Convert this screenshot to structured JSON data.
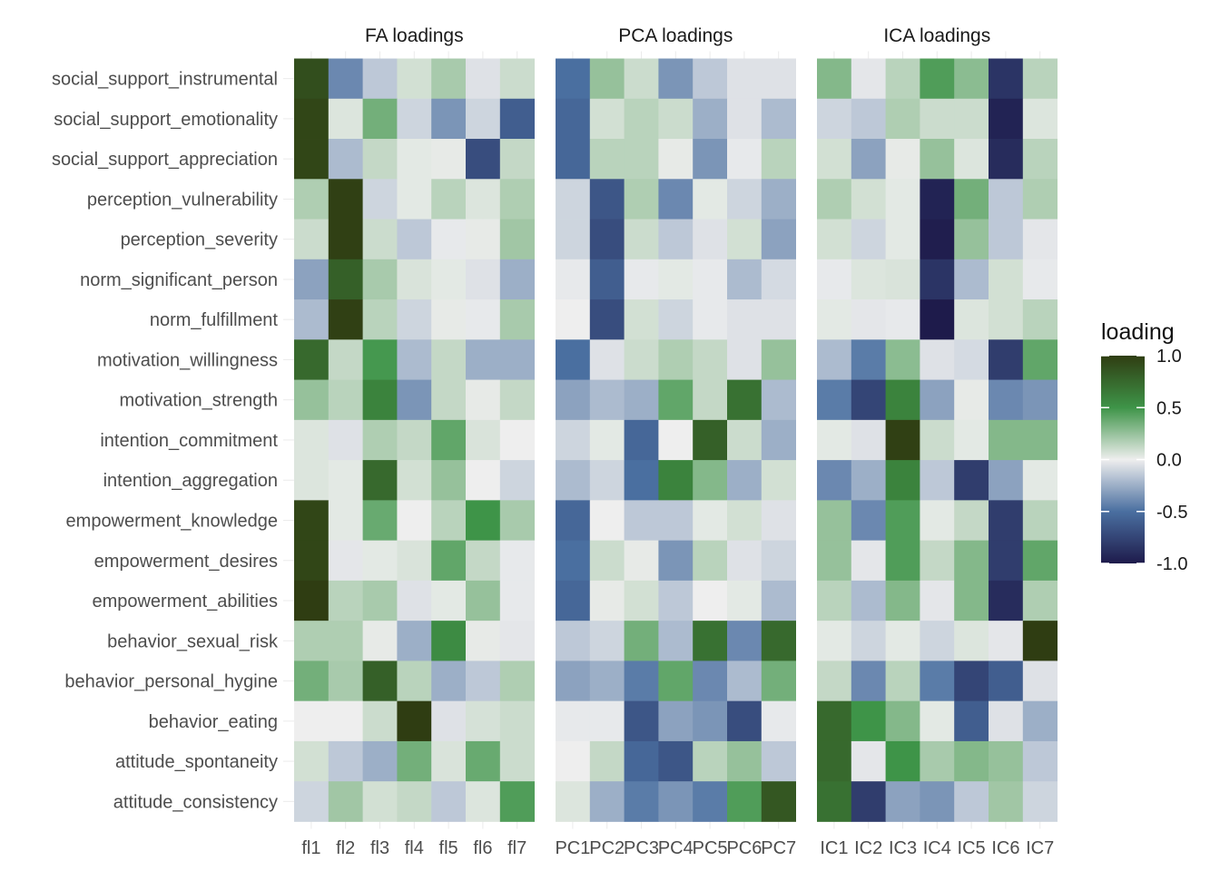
{
  "chart_data": {
    "type": "heatmap",
    "facets": [
      {
        "title": "FA loadings",
        "columns": [
          "fl1",
          "fl2",
          "fl3",
          "fl4",
          "fl5",
          "fl6",
          "fl7"
        ],
        "values": [
          [
            0.9,
            -0.4,
            -0.15,
            0.08,
            0.2,
            -0.05,
            0.1
          ],
          [
            0.95,
            0.05,
            0.35,
            -0.1,
            -0.35,
            -0.1,
            -0.6
          ],
          [
            0.95,
            -0.2,
            0.12,
            0.03,
            0.02,
            -0.7,
            0.12
          ],
          [
            0.18,
            0.98,
            -0.1,
            0.03,
            0.15,
            0.05,
            0.18
          ],
          [
            0.1,
            0.98,
            0.1,
            -0.15,
            -0.02,
            0.02,
            0.22
          ],
          [
            -0.3,
            0.8,
            0.2,
            0.06,
            0.03,
            -0.05,
            -0.25
          ],
          [
            -0.2,
            0.98,
            0.15,
            -0.1,
            0.02,
            -0.02,
            0.2
          ],
          [
            0.75,
            0.12,
            0.48,
            -0.2,
            0.12,
            -0.25,
            -0.25
          ],
          [
            0.25,
            0.15,
            0.6,
            -0.35,
            0.12,
            0.02,
            0.12
          ],
          [
            0.05,
            -0.05,
            0.18,
            0.12,
            0.4,
            0.06,
            0.0
          ],
          [
            0.05,
            0.03,
            0.75,
            0.08,
            0.25,
            0.0,
            -0.1
          ],
          [
            0.95,
            0.03,
            0.38,
            0.0,
            0.15,
            0.5,
            0.2
          ],
          [
            0.95,
            -0.03,
            0.03,
            0.06,
            0.4,
            0.12,
            -0.02
          ],
          [
            1.0,
            0.15,
            0.2,
            -0.05,
            0.03,
            0.25,
            -0.02
          ],
          [
            0.18,
            0.18,
            0.02,
            -0.25,
            0.55,
            0.02,
            -0.03
          ],
          [
            0.35,
            0.2,
            0.8,
            0.15,
            -0.25,
            -0.15,
            0.18
          ],
          [
            0.0,
            0.0,
            0.1,
            1.0,
            -0.05,
            0.07,
            0.1
          ],
          [
            0.08,
            -0.15,
            -0.25,
            0.35,
            0.06,
            0.38,
            0.1
          ],
          [
            -0.1,
            0.22,
            0.08,
            0.12,
            -0.15,
            0.05,
            0.45
          ]
        ]
      },
      {
        "title": "PCA loadings",
        "columns": [
          "PC1",
          "PC2",
          "PC3",
          "PC4",
          "PC5",
          "PC6",
          "PC7"
        ],
        "values": [
          [
            -0.5,
            0.25,
            0.1,
            -0.35,
            -0.15,
            -0.05,
            -0.05
          ],
          [
            -0.55,
            0.08,
            0.15,
            0.1,
            -0.25,
            -0.05,
            -0.2
          ],
          [
            -0.55,
            0.15,
            0.15,
            0.02,
            -0.35,
            -0.02,
            0.15
          ],
          [
            -0.1,
            -0.65,
            0.18,
            -0.4,
            0.03,
            -0.1,
            -0.25
          ],
          [
            -0.1,
            -0.7,
            0.1,
            -0.15,
            -0.05,
            0.08,
            -0.3
          ],
          [
            -0.02,
            -0.6,
            -0.02,
            0.03,
            -0.02,
            -0.2,
            -0.08
          ],
          [
            0.0,
            -0.7,
            0.08,
            -0.1,
            -0.02,
            -0.05,
            -0.05
          ],
          [
            -0.5,
            -0.05,
            0.1,
            0.18,
            0.12,
            -0.05,
            0.25
          ],
          [
            -0.3,
            -0.2,
            -0.25,
            0.4,
            0.12,
            0.7,
            -0.2
          ],
          [
            -0.1,
            0.03,
            -0.55,
            0.0,
            0.8,
            0.1,
            -0.25
          ],
          [
            -0.2,
            -0.1,
            -0.5,
            0.6,
            0.3,
            -0.25,
            0.08
          ],
          [
            -0.55,
            0.0,
            -0.15,
            -0.15,
            0.03,
            0.08,
            -0.05
          ],
          [
            -0.5,
            0.1,
            0.02,
            -0.35,
            0.15,
            -0.05,
            -0.1
          ],
          [
            -0.55,
            0.02,
            0.08,
            -0.15,
            0.0,
            0.03,
            -0.2
          ],
          [
            -0.15,
            -0.1,
            0.35,
            -0.2,
            0.7,
            -0.4,
            0.75
          ],
          [
            -0.3,
            -0.25,
            -0.45,
            0.4,
            -0.4,
            -0.2,
            0.35
          ],
          [
            -0.02,
            -0.02,
            -0.65,
            -0.3,
            -0.35,
            -0.7,
            -0.02
          ],
          [
            0.0,
            0.12,
            -0.55,
            -0.65,
            0.15,
            0.25,
            -0.15
          ],
          [
            0.05,
            -0.25,
            -0.45,
            -0.35,
            -0.45,
            0.45,
            0.85
          ]
        ]
      },
      {
        "title": "ICA loadings",
        "columns": [
          "IC1",
          "IC2",
          "IC3",
          "IC4",
          "IC5",
          "IC6",
          "IC7"
        ],
        "values": [
          [
            0.3,
            -0.03,
            0.15,
            0.45,
            0.28,
            -0.85,
            0.15
          ],
          [
            -0.1,
            -0.15,
            0.18,
            0.1,
            0.1,
            -0.95,
            0.05
          ],
          [
            0.08,
            -0.3,
            0.02,
            0.25,
            0.05,
            -0.9,
            0.15
          ],
          [
            0.18,
            0.08,
            0.03,
            -0.95,
            0.35,
            -0.15,
            0.18
          ],
          [
            0.08,
            -0.1,
            0.03,
            -0.98,
            0.25,
            -0.15,
            -0.03
          ],
          [
            -0.02,
            0.05,
            0.06,
            -0.85,
            -0.2,
            0.08,
            -0.02
          ],
          [
            0.03,
            -0.03,
            -0.02,
            -1.0,
            0.05,
            0.08,
            0.15
          ],
          [
            -0.2,
            -0.45,
            0.28,
            -0.05,
            -0.08,
            -0.8,
            0.4
          ],
          [
            -0.45,
            -0.75,
            0.6,
            -0.3,
            0.02,
            -0.4,
            -0.35
          ],
          [
            0.03,
            -0.05,
            0.98,
            0.1,
            0.03,
            0.3,
            0.3
          ],
          [
            -0.4,
            -0.25,
            0.6,
            -0.15,
            -0.8,
            -0.3,
            0.03
          ],
          [
            0.25,
            -0.4,
            0.45,
            0.03,
            0.12,
            -0.8,
            0.15
          ],
          [
            0.25,
            -0.03,
            0.45,
            0.12,
            0.3,
            -0.8,
            0.4
          ],
          [
            0.15,
            -0.2,
            0.3,
            -0.03,
            0.3,
            -0.9,
            0.18
          ],
          [
            0.03,
            -0.1,
            0.03,
            -0.1,
            0.05,
            -0.03,
            1.0
          ],
          [
            0.12,
            -0.4,
            0.15,
            -0.45,
            -0.75,
            -0.6,
            -0.05
          ],
          [
            0.75,
            0.5,
            0.3,
            0.03,
            -0.6,
            -0.05,
            -0.25
          ],
          [
            0.75,
            -0.03,
            0.5,
            0.2,
            0.3,
            0.25,
            -0.15
          ],
          [
            0.7,
            -0.8,
            -0.3,
            -0.35,
            -0.15,
            0.22,
            -0.1
          ]
        ]
      }
    ],
    "rows": [
      "social_support_instrumental",
      "social_support_emotionality",
      "social_support_appreciation",
      "perception_vulnerability",
      "perception_severity",
      "norm_significant_person",
      "norm_fulfillment",
      "motivation_willingness",
      "motivation_strength",
      "intention_commitment",
      "intention_aggregation",
      "empowerment_knowledge",
      "empowerment_desires",
      "empowerment_abilities",
      "behavior_sexual_risk",
      "behavior_personal_hygine",
      "behavior_eating",
      "attitude_spontaneity",
      "attitude_consistency"
    ],
    "legend": {
      "title": "loading",
      "ticks": [
        "1.0",
        "0.5",
        "0.0",
        "-0.5",
        "-1.0"
      ],
      "range": [
        -1,
        1
      ],
      "placement": "right"
    },
    "colors": {
      "negative_extreme": "#1e1b4b",
      "negative_mid": "#4a6fa0",
      "zero": "#eeeeee",
      "positive_mid": "#3e9448",
      "positive_extreme": "#2f3d12"
    },
    "grid": true
  }
}
